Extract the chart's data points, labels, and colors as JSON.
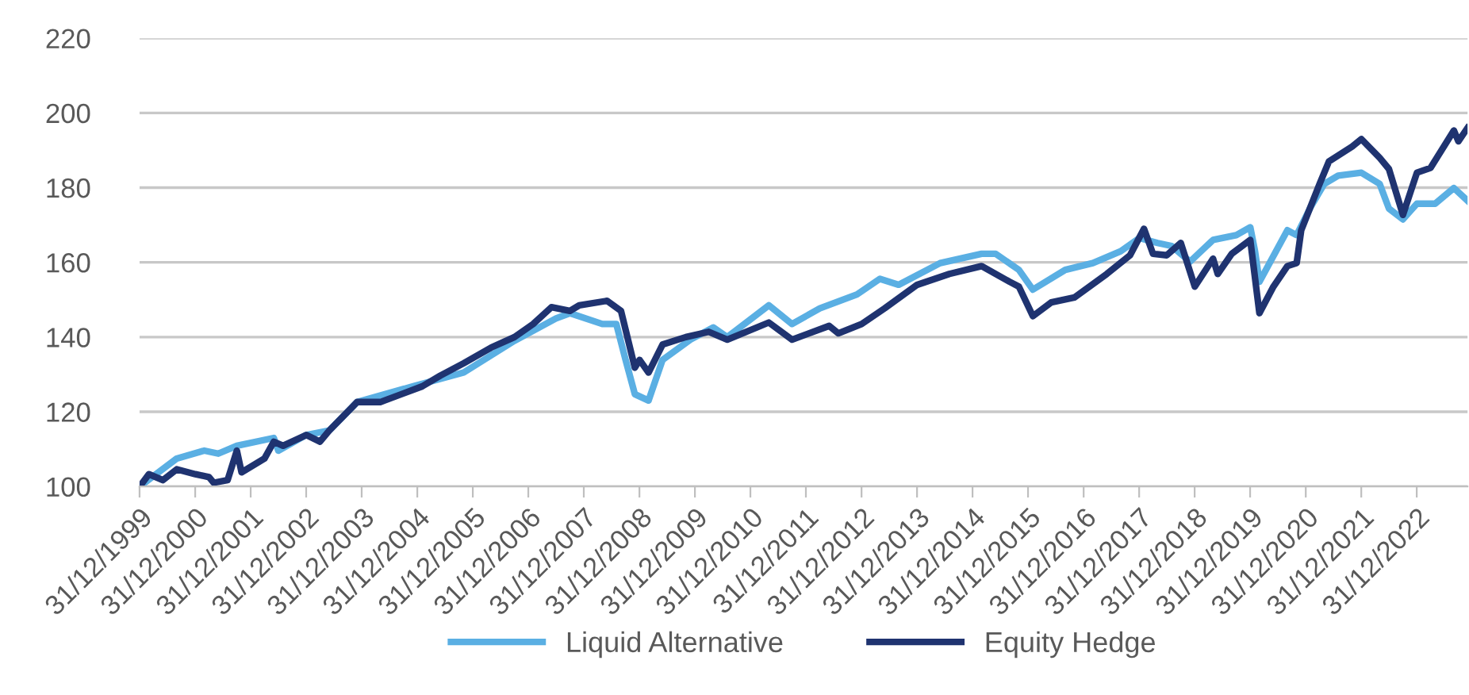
{
  "chart_data": {
    "type": "line",
    "series": [
      {
        "name": "Liquid Alternative",
        "color": "#5aafe3",
        "x": [
          "2000-01",
          "2000-09",
          "2001-03",
          "2001-06",
          "2001-10",
          "2002-06",
          "2002-07",
          "2003-01",
          "2003-06",
          "2003-12",
          "2004-12",
          "2005-11",
          "2006-10",
          "2007-07",
          "2007-10",
          "2008-05",
          "2008-08",
          "2008-10",
          "2008-12",
          "2009-03",
          "2009-06",
          "2009-12",
          "2010-05",
          "2010-08",
          "2011-05",
          "2011-10",
          "2012-04",
          "2012-12",
          "2013-05",
          "2013-09",
          "2014-06",
          "2015-03",
          "2015-06",
          "2015-11",
          "2016-02",
          "2016-09",
          "2017-03",
          "2017-09",
          "2018-01",
          "2018-05",
          "2018-08",
          "2018-12",
          "2019-05",
          "2019-10",
          "2020-01",
          "2020-02",
          "2020-03",
          "2020-09",
          "2020-11",
          "2021-02",
          "2021-05",
          "2021-08",
          "2022-01",
          "2022-05",
          "2022-07",
          "2022-10",
          "2023-01",
          "2023-05",
          "2023-09",
          "2023-11-30"
        ],
        "values": [
          100,
          107.5,
          109.6,
          108.8,
          110.9,
          113,
          109.6,
          113.8,
          115,
          122.6,
          126.8,
          130.5,
          139,
          145,
          146.4,
          143.5,
          143.5,
          133.9,
          124.7,
          123,
          133.9,
          139.3,
          142.6,
          140,
          148.5,
          143.5,
          147.7,
          151.4,
          155.6,
          154,
          159.8,
          162.3,
          162.3,
          158,
          152.7,
          158,
          159.8,
          163,
          166.5,
          165.2,
          164.4,
          160.2,
          166,
          167.3,
          169.4,
          163,
          154.8,
          168.6,
          167.3,
          174.8,
          181,
          183.2,
          184,
          181,
          174.4,
          171.5,
          175.7,
          175.7,
          179.9,
          176.5
        ]
      },
      {
        "name": "Equity Hedge",
        "color": "#1f3370",
        "x": [
          "2000-01",
          "2000-03",
          "2000-06",
          "2000-09",
          "2001-01",
          "2001-04",
          "2001-05",
          "2001-08",
          "2001-10",
          "2001-11",
          "2002-04",
          "2002-06",
          "2002-08",
          "2003-01",
          "2003-04",
          "2003-06",
          "2003-12",
          "2004-05",
          "2005-02",
          "2005-06",
          "2005-11",
          "2006-05",
          "2006-10",
          "2007-02",
          "2007-06",
          "2007-10",
          "2007-12",
          "2008-06",
          "2008-09",
          "2008-12",
          "2009-01",
          "2009-03",
          "2009-06",
          "2009-11",
          "2010-04",
          "2010-08",
          "2011-05",
          "2011-10",
          "2012-06",
          "2012-08",
          "2013-01",
          "2013-06",
          "2014-01",
          "2014-08",
          "2015-03",
          "2015-09",
          "2015-11",
          "2016-02",
          "2016-06",
          "2016-11",
          "2017-06",
          "2017-11",
          "2018-02",
          "2018-04",
          "2018-07",
          "2018-10",
          "2019-01",
          "2019-05",
          "2019-06",
          "2019-09",
          "2020-01",
          "2020-03",
          "2020-06",
          "2020-09",
          "2020-11",
          "2020-12",
          "2021-04",
          "2021-06",
          "2021-11",
          "2022-01",
          "2022-05",
          "2022-07",
          "2022-10",
          "2023-01",
          "2023-04",
          "2023-09",
          "2023-10",
          "2023-11-30"
        ],
        "values": [
          100,
          103.3,
          101.7,
          104.6,
          103.3,
          102.5,
          101,
          101.7,
          109.6,
          103.8,
          107.5,
          112,
          110.9,
          113.8,
          112,
          115,
          122.6,
          122.6,
          126.8,
          129.7,
          133,
          137.2,
          140,
          143.5,
          148,
          147,
          148.5,
          149.7,
          147,
          131.8,
          133.9,
          130.5,
          138,
          140,
          141.4,
          139.3,
          143.9,
          139.3,
          143,
          141,
          143.5,
          147.7,
          154,
          156.9,
          159,
          154.8,
          153.5,
          145.6,
          149.3,
          150.6,
          156.9,
          161.9,
          169,
          162.3,
          161.9,
          165.2,
          153.5,
          161,
          156.9,
          162.3,
          166,
          146.4,
          153.5,
          159,
          159.8,
          168.6,
          181,
          187,
          191,
          193,
          188,
          185,
          172.7,
          184,
          185.3,
          195.3,
          192.4,
          196
        ]
      }
    ],
    "xlim": [
      "1999-12-31",
      "2023-11-30"
    ],
    "xticks": [
      {
        "value": "1999-12-31",
        "label": "31/12/1999"
      },
      {
        "value": "2000-12-31",
        "label": "31/12/2000"
      },
      {
        "value": "2001-12-31",
        "label": "31/12/2001"
      },
      {
        "value": "2002-12-31",
        "label": "31/12/2002"
      },
      {
        "value": "2003-12-31",
        "label": "31/12/2003"
      },
      {
        "value": "2004-12-31",
        "label": "31/12/2004"
      },
      {
        "value": "2005-12-31",
        "label": "31/12/2005"
      },
      {
        "value": "2006-12-31",
        "label": "31/12/2006"
      },
      {
        "value": "2007-12-31",
        "label": "31/12/2007"
      },
      {
        "value": "2008-12-31",
        "label": "31/12/2008"
      },
      {
        "value": "2009-12-31",
        "label": "31/12/2009"
      },
      {
        "value": "2010-12-31",
        "label": "31/12/2010"
      },
      {
        "value": "2011-12-31",
        "label": "31/12/2011"
      },
      {
        "value": "2012-12-31",
        "label": "31/12/2012"
      },
      {
        "value": "2013-12-31",
        "label": "31/12/2013"
      },
      {
        "value": "2014-12-31",
        "label": "31/12/2014"
      },
      {
        "value": "2015-12-31",
        "label": "31/12/2015"
      },
      {
        "value": "2016-12-31",
        "label": "31/12/2016"
      },
      {
        "value": "2017-12-31",
        "label": "31/12/2017"
      },
      {
        "value": "2018-12-31",
        "label": "31/12/2018"
      },
      {
        "value": "2019-12-31",
        "label": "31/12/2019"
      },
      {
        "value": "2020-12-31",
        "label": "31/12/2020"
      },
      {
        "value": "2021-12-31",
        "label": "31/12/2021"
      },
      {
        "value": "2022-12-31",
        "label": "31/12/2022"
      }
    ],
    "ylim": [
      100,
      220
    ],
    "yticks": [
      100,
      120,
      140,
      160,
      180,
      200,
      220
    ],
    "grid": "y",
    "legend": "bottom",
    "marker": "none",
    "line_style": "solid"
  }
}
